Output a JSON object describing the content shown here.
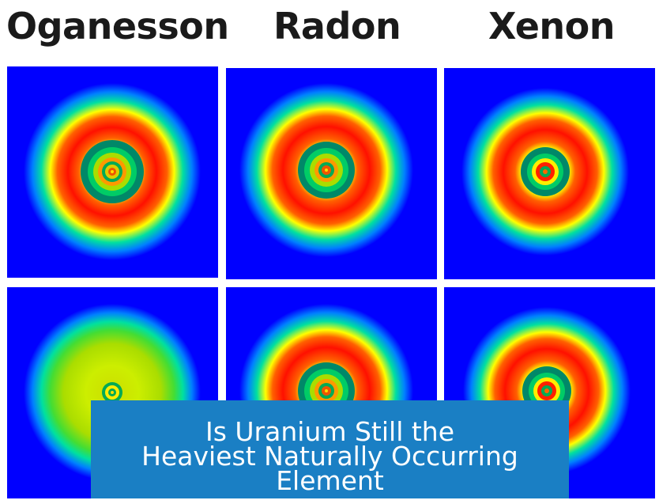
{
  "columns": [
    {
      "label": "Oganesson"
    },
    {
      "label": "Radon"
    },
    {
      "label": "Xenon"
    }
  ],
  "panels": [
    {
      "row": "top",
      "column": "Oganesson",
      "palette": "rainbow-rings"
    },
    {
      "row": "top",
      "column": "Radon",
      "palette": "rainbow-rings"
    },
    {
      "row": "top",
      "column": "Xenon",
      "palette": "rainbow-rings"
    },
    {
      "row": "bottom",
      "column": "Oganesson",
      "palette": "diffuse-yellow-green"
    },
    {
      "row": "bottom",
      "column": "Radon",
      "palette": "rainbow-rings"
    },
    {
      "row": "bottom",
      "column": "Xenon",
      "palette": "rainbow-rings"
    }
  ],
  "colors": {
    "background": "#0000ff",
    "ring_red": "#ff1a00",
    "ring_yellow": "#ffff00",
    "ring_green": "#00cc66",
    "ring_cyan": "#00e5e5",
    "banner": "#1a7fc4"
  },
  "banner": {
    "lines": [
      "Is Uranium Still the",
      "Heaviest Naturally Occurring",
      "Element"
    ]
  }
}
